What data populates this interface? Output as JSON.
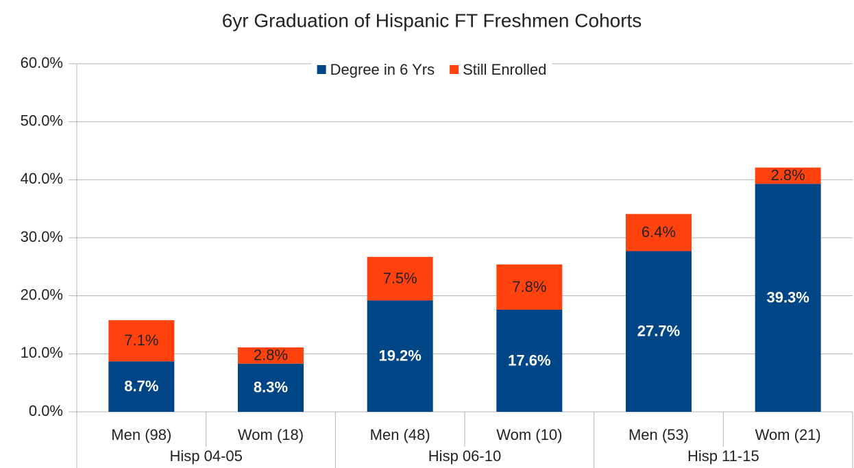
{
  "chart_data": {
    "type": "stacked_bar",
    "title": "6yr Graduation of Hispanic FT Freshmen Cohorts",
    "groups": [
      {
        "name": "Hisp 04-05",
        "categories": [
          "Men (98)",
          "Wom (18)"
        ]
      },
      {
        "name": "Hisp 06-10",
        "categories": [
          "Men (48)",
          "Wom (10)"
        ]
      },
      {
        "name": "Hisp 11-15",
        "categories": [
          "Men (53)",
          "Wom (21)"
        ]
      }
    ],
    "series": [
      {
        "name": "Degree in 6 Yrs",
        "color": "#004586",
        "values": [
          8.7,
          8.3,
          19.2,
          17.6,
          27.7,
          39.3
        ],
        "value_labels": [
          "8.7%",
          "8.3%",
          "19.2%",
          "17.6%",
          "27.7%",
          "39.3%"
        ]
      },
      {
        "name": "Still Enrolled",
        "color": "#ff420e",
        "values": [
          7.1,
          2.8,
          7.5,
          7.8,
          6.4,
          2.8
        ],
        "value_labels": [
          "7.1%",
          "2.8%",
          "7.5%",
          "7.8%",
          "6.4%",
          "2.8%"
        ]
      }
    ],
    "ylim": [
      0,
      60
    ],
    "yticks": [
      {
        "value": 0,
        "label": "0.0%"
      },
      {
        "value": 10,
        "label": "10.0%"
      },
      {
        "value": 20,
        "label": "20.0%"
      },
      {
        "value": 30,
        "label": "30.0%"
      },
      {
        "value": 40,
        "label": "40.0%"
      },
      {
        "value": 50,
        "label": "50.0%"
      },
      {
        "value": 60,
        "label": "60.0%"
      }
    ],
    "grid": true,
    "legend": "top"
  }
}
